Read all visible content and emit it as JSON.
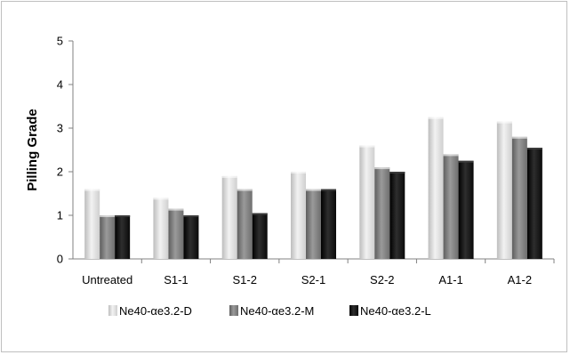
{
  "chart_data": {
    "type": "bar",
    "title": "",
    "xlabel": "",
    "ylabel": "Pilling Grade",
    "ylim": [
      0,
      5
    ],
    "yticks": [
      "0",
      "1",
      "2",
      "3",
      "4",
      "5"
    ],
    "grid": false,
    "legend_position": "bottom",
    "categories": [
      "Untreated",
      "S1-1",
      "S1-2",
      "S2-1",
      "S2-2",
      "A1-1",
      "A1-2"
    ],
    "series": [
      {
        "name": "Ne40-αe3.2-D",
        "color": "#d9d9d9",
        "values": [
          1.6,
          1.4,
          1.9,
          2.0,
          2.6,
          3.25,
          3.15
        ]
      },
      {
        "name": "Ne40-αe3.2-M",
        "color": "#808080",
        "values": [
          1.0,
          1.15,
          1.6,
          1.6,
          2.1,
          2.4,
          2.8
        ]
      },
      {
        "name": "Ne40-αe3.2-L",
        "color": "#141414",
        "values": [
          1.0,
          1.0,
          1.05,
          1.6,
          2.0,
          2.25,
          2.55
        ]
      }
    ]
  }
}
